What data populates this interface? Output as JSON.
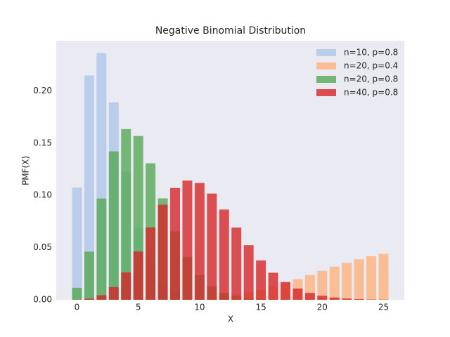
{
  "chart_data": {
    "type": "bar",
    "title": "Negative Binomial Distribution",
    "x_label": "X",
    "y_label": "PMF(X)",
    "x": [
      0,
      1,
      2,
      3,
      4,
      5,
      6,
      7,
      8,
      9,
      10,
      11,
      12,
      13,
      14,
      15,
      16,
      17,
      18,
      19,
      20,
      21,
      22,
      23,
      24,
      25
    ],
    "series": [
      {
        "name": "n=10, p=0.8",
        "color": "#aec7e8",
        "values": [
          0.1074,
          0.2147,
          0.2362,
          0.189,
          0.1228,
          0.0688,
          0.0344,
          0.0157,
          0.0067,
          0.0027,
          0.001,
          0.0004,
          0.0001,
          0,
          0,
          0,
          0,
          0,
          0,
          0,
          0,
          0,
          0,
          0,
          0,
          0
        ]
      },
      {
        "name": "n=20, p=0.4",
        "color": "#ffb27a",
        "values": [
          0,
          0,
          0,
          0,
          0,
          0,
          0.0001,
          0.0002,
          0.0004,
          0.0008,
          0.0013,
          0.0022,
          0.0034,
          0.005,
          0.0071,
          0.0096,
          0.0126,
          0.016,
          0.0197,
          0.0237,
          0.0277,
          0.0317,
          0.0354,
          0.0388,
          0.0417,
          0.044
        ]
      },
      {
        "name": "n=20, p=0.8",
        "color": "#55a955",
        "values": [
          0.0115,
          0.0461,
          0.0969,
          0.1421,
          0.1634,
          0.1568,
          0.1307,
          0.0971,
          0.0655,
          0.0408,
          0.0237,
          0.0129,
          0.0067,
          0.0033,
          0.0016,
          0.0007,
          0.0003,
          0.0001,
          0,
          0,
          0,
          0,
          0,
          0,
          0,
          0
        ]
      },
      {
        "name": "n=40, p=0.8",
        "color": "#d62728",
        "values": [
          0.0001,
          0.0011,
          0.0044,
          0.0122,
          0.0262,
          0.0462,
          0.0693,
          0.091,
          0.107,
          0.1141,
          0.1118,
          0.1017,
          0.0864,
          0.0691,
          0.0523,
          0.0377,
          0.0259,
          0.0171,
          0.0108,
          0.0066,
          0.0039,
          0.0022,
          0.0012,
          0.0007,
          0.0003,
          0.0002
        ]
      }
    ],
    "opacity": 0.8,
    "bar_width": 0.8,
    "xlim": [
      -1.69,
      26.69
    ],
    "ylim": [
      0,
      0.248
    ],
    "xticks": [
      0,
      5,
      10,
      15,
      20,
      25
    ],
    "yticks": [
      {
        "value": 0,
        "label": "0.00"
      },
      {
        "value": 0.05,
        "label": "0.05"
      },
      {
        "value": 0.1,
        "label": "0.10"
      },
      {
        "value": 0.15,
        "label": "0.15"
      },
      {
        "value": 0.2,
        "label": "0.20"
      }
    ],
    "legend": "upper right",
    "grid": false
  }
}
